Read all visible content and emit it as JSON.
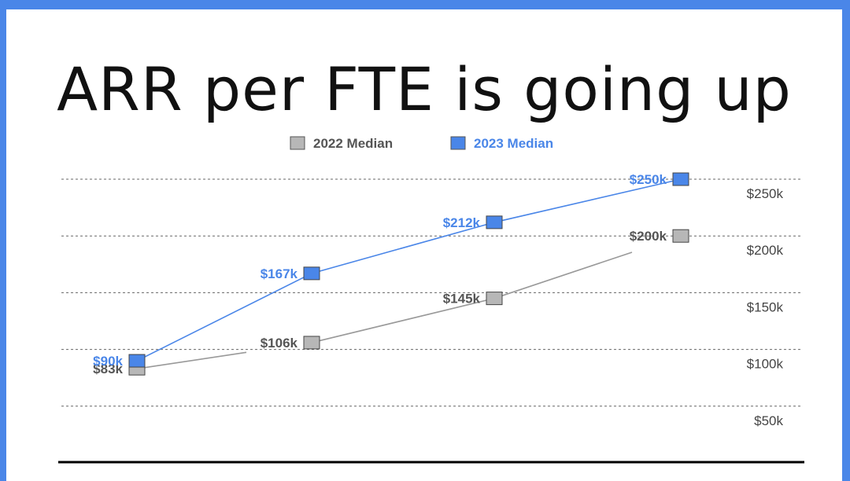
{
  "chart_data": {
    "type": "line",
    "title": "ARR per FTE is going up",
    "x": [
      "",
      "",
      "",
      ""
    ],
    "y_ticks": [
      "$250k",
      "$200k",
      "$150k",
      "$100k",
      "$50k"
    ],
    "ylim": [
      40,
      265
    ],
    "grid": true,
    "legend_position": "top",
    "series": [
      {
        "name": "2022 Median",
        "values": [
          83,
          106,
          145,
          200
        ],
        "labels": [
          "$83k",
          "$106k",
          "$145k",
          "$200k"
        ],
        "color": "#999999",
        "marker_color": "#b7b7b7",
        "label_color": "#555555"
      },
      {
        "name": "2023 Median",
        "values": [
          90,
          167,
          212,
          250
        ],
        "labels": [
          "$90k",
          "$167k",
          "$212k",
          "$250k"
        ],
        "color": "#4a86e8",
        "marker_color": "#4a86e8",
        "label_color": "#4a86e8"
      }
    ]
  },
  "colors": {
    "accent": "#4a86e8",
    "grid": "#666666",
    "baseline": "#000000",
    "background": "#ffffff"
  }
}
